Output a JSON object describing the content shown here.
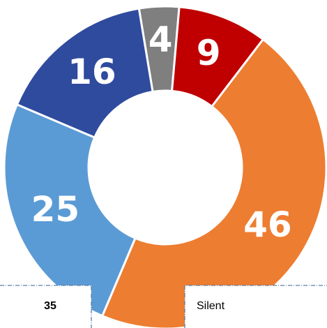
{
  "chart_data": {
    "type": "donut",
    "categories": [
      null,
      null,
      null,
      null,
      null
    ],
    "values": [
      4,
      9,
      46,
      25,
      16
    ],
    "colors": [
      "#7f7f7f",
      "#c00000",
      "#ed7d31",
      "#5b9bd5",
      "#2f4b9e"
    ]
  },
  "overlay_cells": [
    "35",
    "Silent"
  ]
}
